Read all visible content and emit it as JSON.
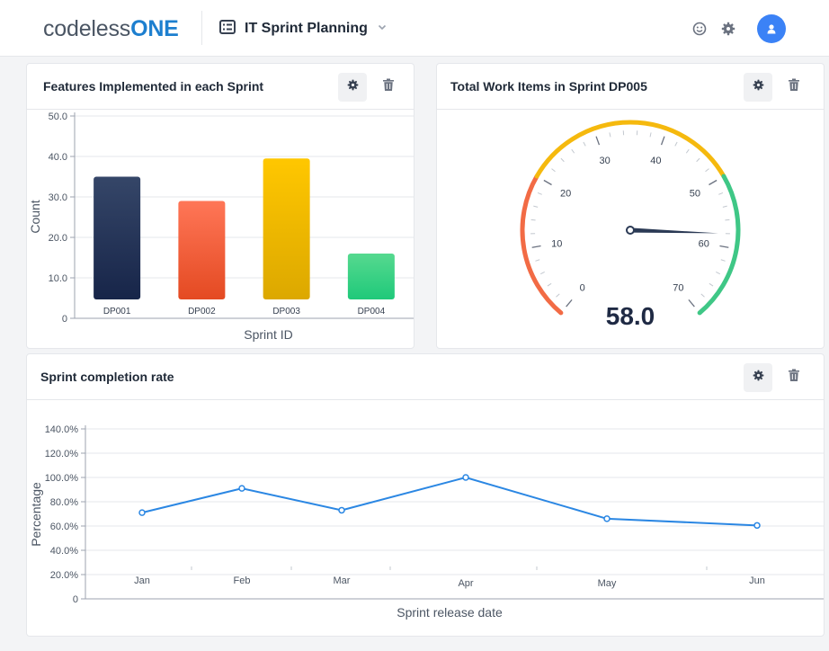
{
  "header": {
    "logo_prefix": "codeless",
    "logo_suffix": "ONE",
    "app_title": "IT Sprint Planning"
  },
  "colors": {
    "brand": "#1d7fcf",
    "avatar": "#3b82f6",
    "line": "#2b87e3"
  },
  "widgets": {
    "bar": {
      "title": "Features Implemented in each Sprint",
      "chart_data": {
        "type": "bar",
        "title": "Features Implemented in each Sprint",
        "categories": [
          "DP001",
          "DP002",
          "DP003",
          "DP004"
        ],
        "values": [
          35,
          29,
          39.5,
          16
        ],
        "colors": [
          [
            "#354668",
            "#172549"
          ],
          [
            "#ff7657",
            "#e44a22"
          ],
          [
            "#ffc700",
            "#dca800"
          ],
          [
            "#56d98f",
            "#1fc97a"
          ]
        ],
        "xlabel": "Sprint ID",
        "ylabel": "Count",
        "ylim": [
          0,
          50
        ],
        "yticks": [
          "0",
          "10.0",
          "20.0",
          "30.0",
          "40.0",
          "50.0"
        ],
        "ytick_values": [
          0,
          10,
          20,
          30,
          40,
          50
        ],
        "grid": true
      }
    },
    "gauge": {
      "title": "Total Work Items in Sprint DP005",
      "value": 58,
      "value_label": "58.0",
      "min": 0,
      "max": 70,
      "tick_labels": [
        "0",
        "10",
        "20",
        "30",
        "40",
        "50",
        "60",
        "70"
      ],
      "bands": [
        {
          "from": 0,
          "to": 20,
          "color": "#f26b45"
        },
        {
          "from": 20,
          "to": 50,
          "color": "#f5b90e"
        },
        {
          "from": 50,
          "to": 70,
          "color": "#3fc786"
        }
      ]
    },
    "line": {
      "title": "Sprint completion rate",
      "chart_data": {
        "type": "line",
        "title": "Sprint completion rate",
        "x": [
          "Jan",
          "Feb",
          "Mar",
          "Apr",
          "May",
          "Jun"
        ],
        "values": [
          71,
          91,
          73,
          100,
          66,
          60.5
        ],
        "xlabel": "Sprint release date",
        "ylabel": "Percentage",
        "ylim": [
          0,
          140
        ],
        "yticks": [
          "0",
          "20.0%",
          "40.0%",
          "60.0%",
          "80.0%",
          "100.0%",
          "120.0%",
          "140.0%"
        ],
        "ytick_values": [
          0,
          20,
          40,
          60,
          80,
          100,
          120,
          140
        ],
        "grid": true
      }
    }
  }
}
